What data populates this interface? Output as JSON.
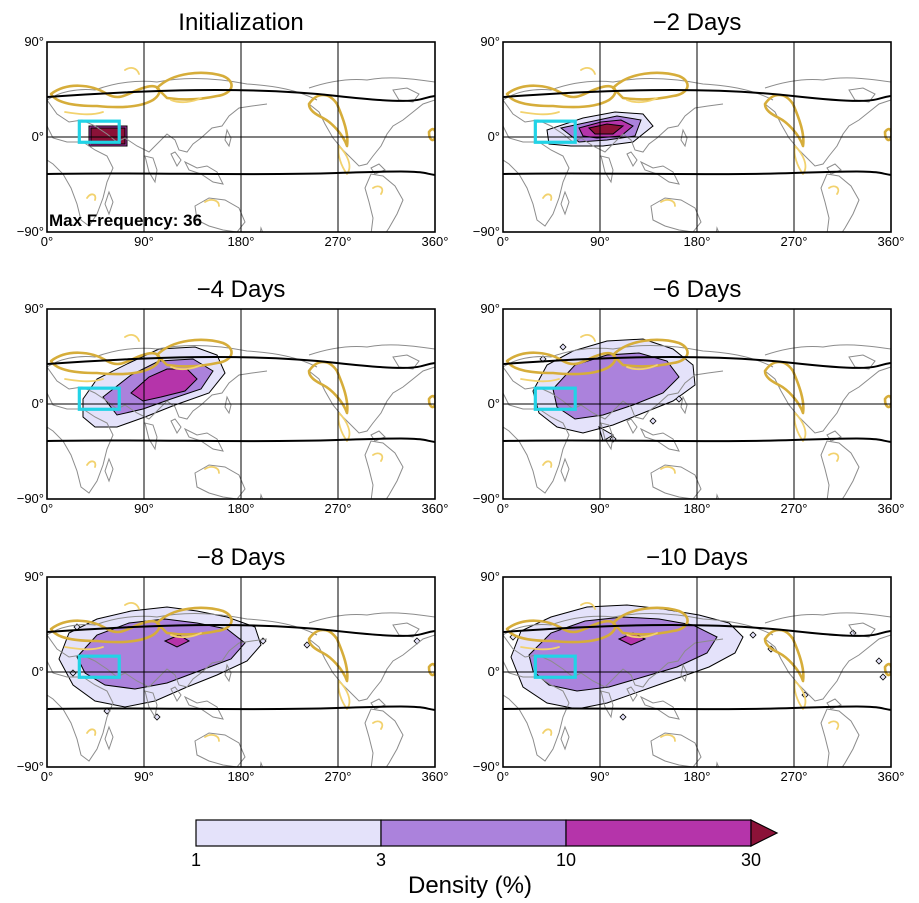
{
  "panels": [
    {
      "title": "Initialization",
      "annotation": "Max Frequency: 36",
      "box_lon": 45
    },
    {
      "title": "−2 Days",
      "annotation": "",
      "box_lon": 45
    },
    {
      "title": "−4 Days",
      "annotation": "",
      "box_lon": 45
    },
    {
      "title": "−6 Days",
      "annotation": "",
      "box_lon": 45
    },
    {
      "title": "−8 Days",
      "annotation": "",
      "box_lon": 45
    },
    {
      "title": "−10 Days",
      "annotation": "",
      "box_lon": 45
    }
  ],
  "axes": {
    "lon_ticks": [
      "0°",
      "90°",
      "180°",
      "270°",
      "360°"
    ],
    "lat_ticks": [
      "90°",
      "0°",
      "−90°"
    ],
    "lon_range": [
      0,
      360
    ],
    "lat_range": [
      -90,
      90
    ]
  },
  "source_box": {
    "lon": [
      30,
      67
    ],
    "lat": [
      -5,
      15
    ],
    "color": "#22d3e6"
  },
  "colorbar": {
    "label": "Density (%)",
    "ticks": [
      "1",
      "3",
      "10",
      "30"
    ],
    "bins": [
      {
        "from": 1,
        "to": 3,
        "color": "#e4e2fa"
      },
      {
        "from": 3,
        "to": 10,
        "color": "#ab82dc"
      },
      {
        "from": 10,
        "to": 30,
        "color": "#b534aa"
      },
      {
        "from": 30,
        "to": null,
        "color": "#8b1238"
      }
    ]
  },
  "colors": {
    "coast": "#8c8c8c",
    "jet_contour": "#d6ad3a",
    "jet_contour_light": "#f2d26e",
    "tropics_line": "#000000"
  }
}
